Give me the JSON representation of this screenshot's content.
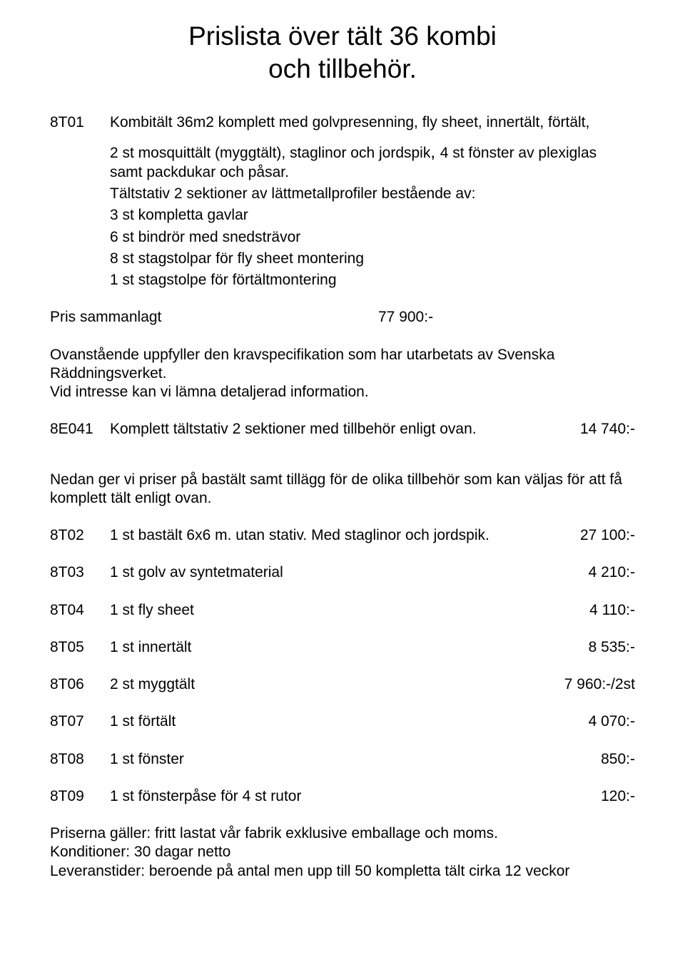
{
  "title_line1": "Prislista över tält 36 kombi",
  "title_line2": "och tillbehör.",
  "intro": {
    "code": "8T01",
    "text1": "Kombitält 36m2 komplett med golvpresenning, fly sheet, innertält, förtält,",
    "text2": "2 st mosquittält (myggtält), staglinor och jordspik",
    "text2b": ", ",
    "text2c": "4 st fönster av plexiglas samt packdukar och påsar.",
    "text3": "Tältstativ 2 sektioner av lättmetallprofiler bestående av:",
    "b1": "3 st kompletta gavlar",
    "b2": "6 st bindrör med snedsträvor",
    "b3": "8 st stagstolpar för fly sheet montering",
    "b4": "1 st stagstolpe för förtältmontering"
  },
  "sum_label": "Pris sammanlagt",
  "sum_price": "77 900:-",
  "note1a": "Ovanstående uppfyller den kravspecifikation som har utarbetats av Svenska Räddningsverket.",
  "note1b": "Vid intresse kan vi lämna detaljerad information.",
  "stativ": {
    "code": "8E041",
    "desc": "Komplett tältstativ 2 sektioner med tillbehör enligt ovan.",
    "price": "14 740:-"
  },
  "section2": "Nedan ger vi priser på bastält samt tillägg för de olika tillbehör som kan väljas för att få komplett tält enligt ovan.",
  "items": [
    {
      "code": "8T02",
      "desc": "1 st bastält 6x6 m. utan stativ. Med staglinor och jordspik.",
      "price": "27 100:-"
    },
    {
      "code": "8T03",
      "desc": "1 st golv av syntetmaterial",
      "price": "4 210:-"
    },
    {
      "code": "8T04",
      "desc": "1 st fly sheet",
      "price": "4 110:-"
    },
    {
      "code": "8T05",
      "desc": "1 st innertält",
      "price": "8 535:-"
    },
    {
      "code": "8T06",
      "desc": "2 st myggtält",
      "price": "7 960:-/2st"
    },
    {
      "code": "8T07",
      "desc": "1 st förtält",
      "price": "4 070:-"
    },
    {
      "code": "8T08",
      "desc": "1 st fönster",
      "price": "850:-"
    },
    {
      "code": "8T09",
      "desc": "1 st fönsterpåse för 4 st rutor",
      "price": "120:-"
    }
  ],
  "footer1": "Priserna gäller: fritt lastat vår fabrik exklusive emballage och moms.",
  "footer2": "Konditioner: 30 dagar netto",
  "footer3": "Leveranstider: beroende på antal men upp till 50 kompletta tält cirka 12 veckor"
}
